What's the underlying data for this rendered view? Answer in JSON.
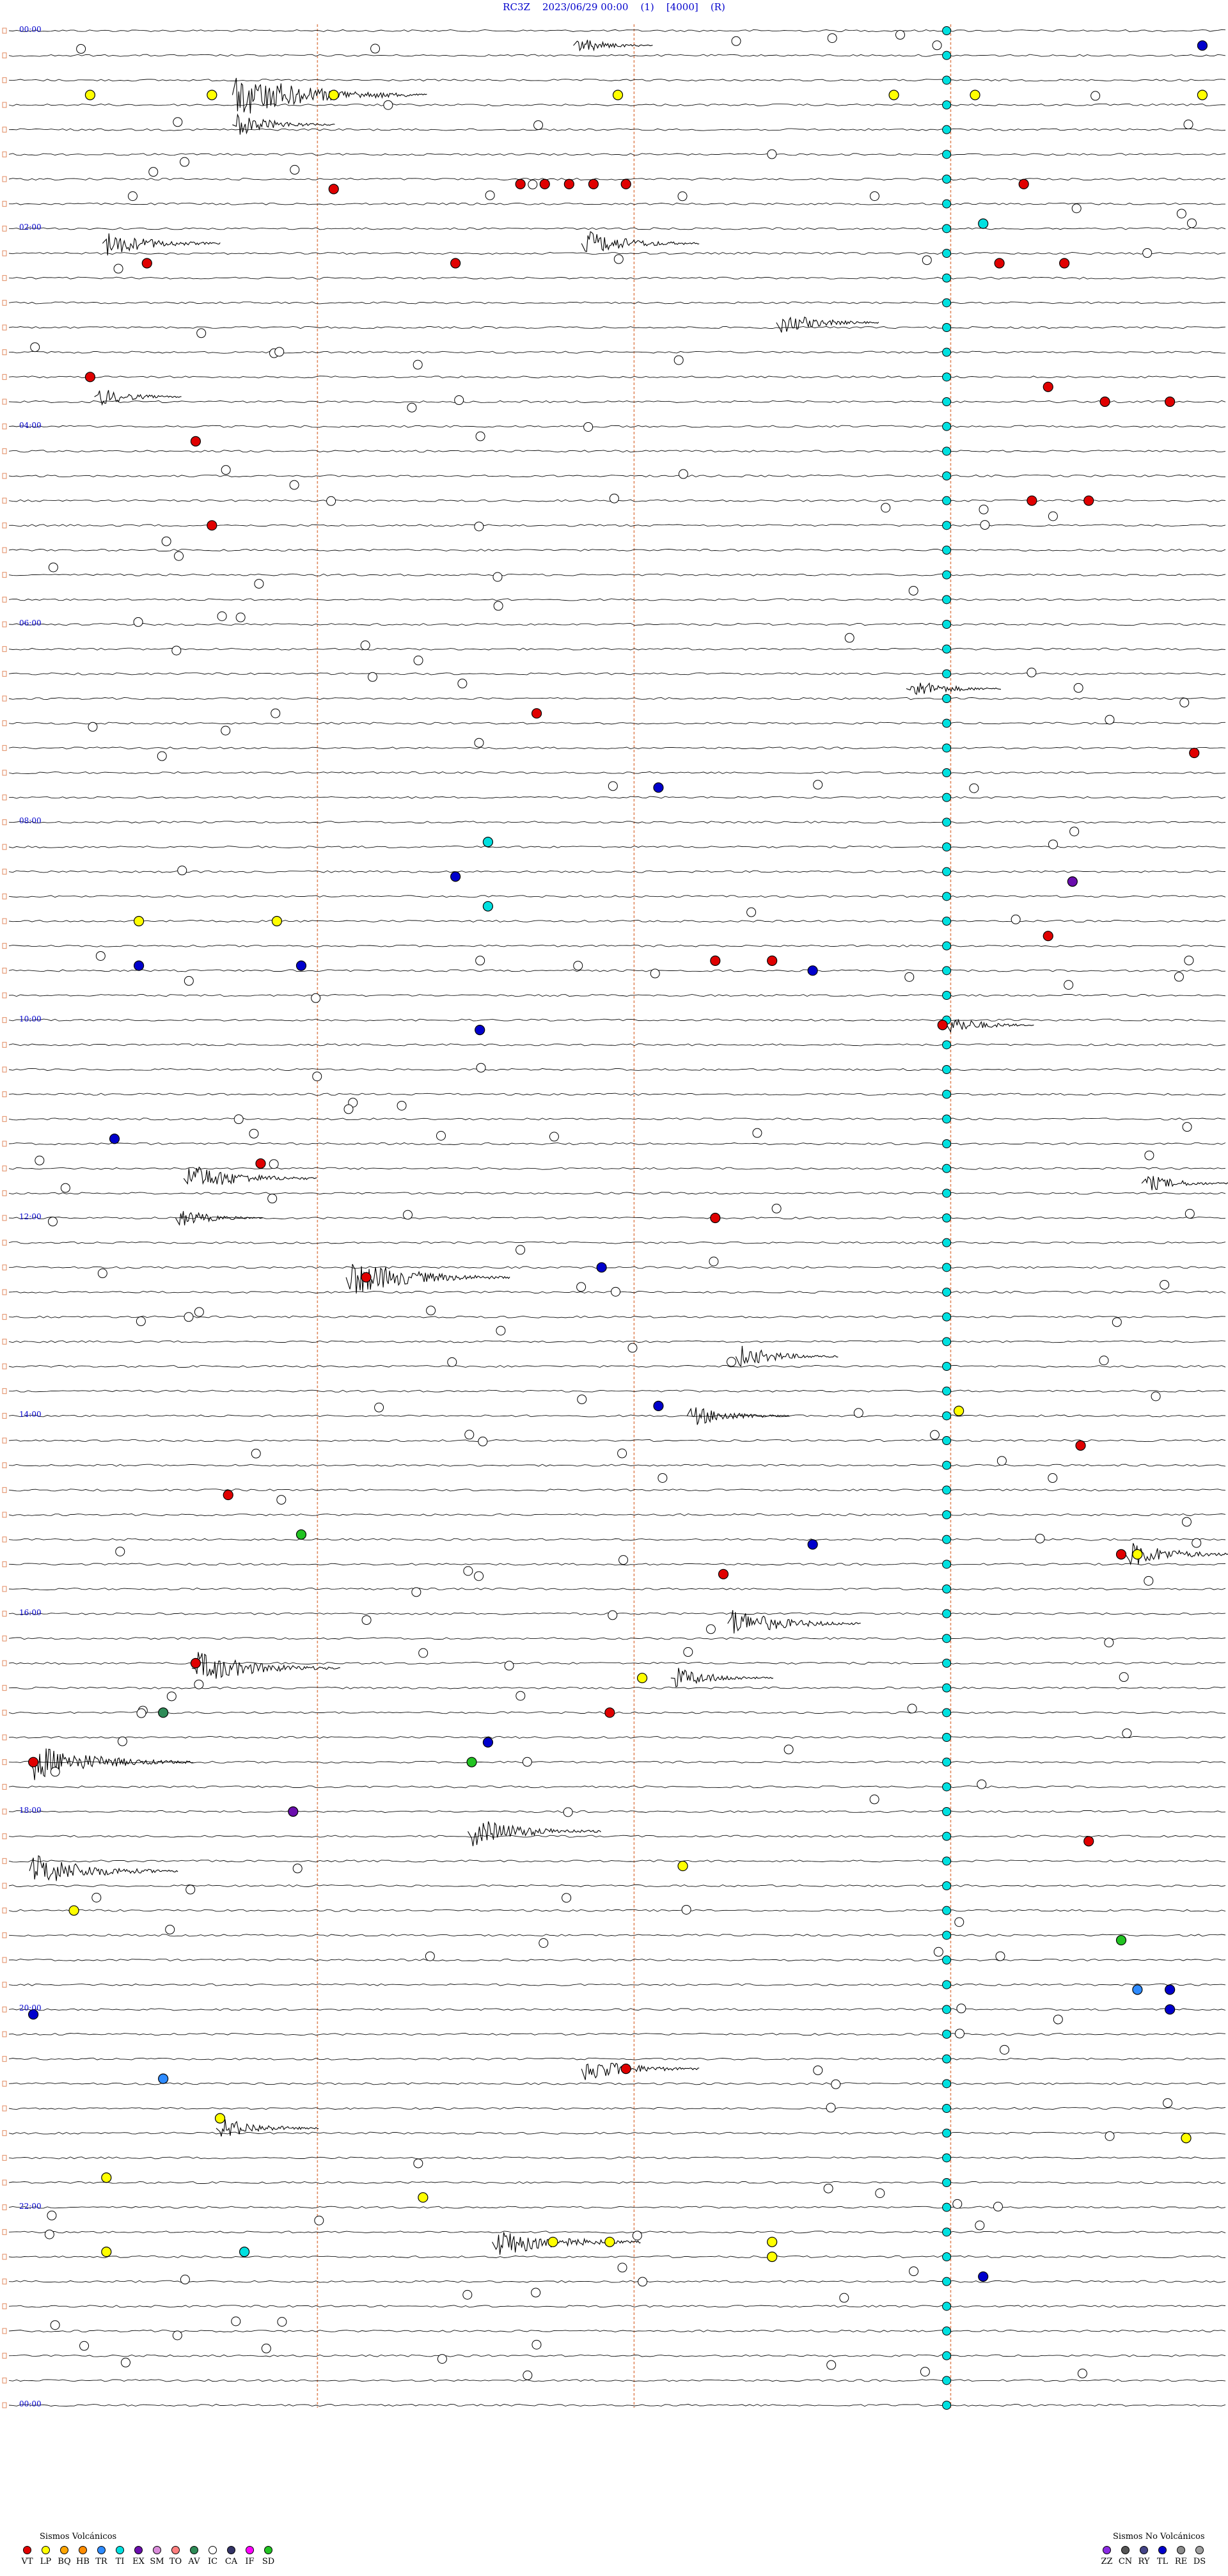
{
  "header": {
    "station": "RC3Z",
    "datetime": "2023/06/29 00:00",
    "p1": "(1)",
    "p2": "[4000]",
    "p3": "(R)"
  },
  "hour_labels": [
    "00:00",
    "02:00",
    "04:00",
    "06:00",
    "08:00",
    "10:00",
    "12:00",
    "14:00",
    "16:00",
    "18:00",
    "20:00",
    "22:00",
    "00:00"
  ],
  "legend": {
    "volcanic_title": "Sismos Volcánicos",
    "volcanic": [
      {
        "code": "VT",
        "color": "#e00000"
      },
      {
        "code": "LP",
        "color": "#ffff00"
      },
      {
        "code": "BQ",
        "color": "#ffa500"
      },
      {
        "code": "HB",
        "color": "#ff8c00"
      },
      {
        "code": "TR",
        "color": "#2e8bff"
      },
      {
        "code": "TI",
        "color": "#00e0e0"
      },
      {
        "code": "EX",
        "color": "#6a0dad"
      },
      {
        "code": "SM",
        "color": "#d98cd9"
      },
      {
        "code": "TO",
        "color": "#ff7f7f"
      },
      {
        "code": "AV",
        "color": "#2e8b57"
      },
      {
        "code": "IC",
        "color": "#ffffff"
      },
      {
        "code": "CA",
        "color": "#333366"
      },
      {
        "code": "IF",
        "color": "#ff00ff"
      },
      {
        "code": "SD",
        "color": "#22c322"
      }
    ],
    "nonvolcanic_title": "Sismos No Volcánicos",
    "nonvolcanic": [
      {
        "code": "ZZ",
        "color": "#8a2be2"
      },
      {
        "code": "CN",
        "color": "#555555"
      },
      {
        "code": "RY",
        "color": "#444488"
      },
      {
        "code": "TL",
        "color": "#0000cc"
      },
      {
        "code": "RE",
        "color": "#8b8b8b"
      },
      {
        "code": "DS",
        "color": "#a0a0a0"
      }
    ]
  },
  "chart_data": {
    "type": "helicorder",
    "title": "RC3Z    2023/06/29 00:00    (1)    [4000]    (R)",
    "traces_per_hour": 4,
    "x_minutes": [
      0,
      15
    ],
    "y_hours": [
      0,
      24
    ],
    "hour_labels": [
      "00:00",
      "02:00",
      "04:00",
      "06:00",
      "08:00",
      "10:00",
      "12:00",
      "14:00",
      "16:00",
      "18:00",
      "20:00",
      "22:00",
      "00:00"
    ],
    "events": [
      {
        "h": 0.15,
        "m": 14.7,
        "t": "TL"
      },
      {
        "h": 0.65,
        "m": 1.0,
        "t": "LP"
      },
      {
        "h": 0.65,
        "m": 2.5,
        "t": "LP"
      },
      {
        "h": 0.65,
        "m": 4.0,
        "t": "LP"
      },
      {
        "h": 0.65,
        "m": 7.5,
        "t": "LP"
      },
      {
        "h": 0.65,
        "m": 10.9,
        "t": "LP"
      },
      {
        "h": 0.65,
        "m": 11.9,
        "t": "LP"
      },
      {
        "h": 0.65,
        "m": 14.7,
        "t": "LP"
      },
      {
        "h": 1.55,
        "m": 6.3,
        "t": "VT"
      },
      {
        "h": 1.55,
        "m": 6.6,
        "t": "VT"
      },
      {
        "h": 1.55,
        "m": 6.9,
        "t": "VT"
      },
      {
        "h": 1.55,
        "m": 7.2,
        "t": "VT"
      },
      {
        "h": 1.55,
        "m": 7.6,
        "t": "VT"
      },
      {
        "h": 1.55,
        "m": 12.5,
        "t": "VT"
      },
      {
        "h": 1.6,
        "m": 4.0,
        "t": "VT"
      },
      {
        "h": 1.95,
        "m": 12.0,
        "t": "TI"
      },
      {
        "h": 2.35,
        "m": 1.7,
        "t": "VT"
      },
      {
        "h": 2.35,
        "m": 5.5,
        "t": "VT"
      },
      {
        "h": 2.35,
        "m": 12.2,
        "t": "VT"
      },
      {
        "h": 2.35,
        "m": 13.0,
        "t": "VT"
      },
      {
        "h": 3.5,
        "m": 1.0,
        "t": "VT"
      },
      {
        "h": 3.6,
        "m": 12.8,
        "t": "VT"
      },
      {
        "h": 3.75,
        "m": 13.5,
        "t": "VT"
      },
      {
        "h": 3.75,
        "m": 14.3,
        "t": "VT"
      },
      {
        "h": 4.15,
        "m": 2.3,
        "t": "VT"
      },
      {
        "h": 4.75,
        "m": 12.6,
        "t": "VT"
      },
      {
        "h": 4.75,
        "m": 13.3,
        "t": "VT"
      },
      {
        "h": 5.0,
        "m": 2.5,
        "t": "VT"
      },
      {
        "h": 6.9,
        "m": 6.5,
        "t": "VT"
      },
      {
        "h": 7.3,
        "m": 14.6,
        "t": "VT"
      },
      {
        "h": 7.65,
        "m": 8.0,
        "t": "TL"
      },
      {
        "h": 8.2,
        "m": 5.9,
        "t": "TI"
      },
      {
        "h": 8.55,
        "m": 5.5,
        "t": "TL"
      },
      {
        "h": 8.6,
        "m": 13.1,
        "t": "EX"
      },
      {
        "h": 8.85,
        "m": 5.9,
        "t": "TI"
      },
      {
        "h": 9.0,
        "m": 1.6,
        "t": "LP"
      },
      {
        "h": 9.0,
        "m": 3.3,
        "t": "LP"
      },
      {
        "h": 9.15,
        "m": 12.8,
        "t": "VT"
      },
      {
        "h": 9.4,
        "m": 8.7,
        "t": "VT"
      },
      {
        "h": 9.4,
        "m": 9.4,
        "t": "VT"
      },
      {
        "h": 9.45,
        "m": 1.6,
        "t": "TL"
      },
      {
        "h": 9.45,
        "m": 3.6,
        "t": "TL"
      },
      {
        "h": 9.5,
        "m": 9.9,
        "t": "TL"
      },
      {
        "h": 10.05,
        "m": 11.5,
        "t": "VT"
      },
      {
        "h": 10.1,
        "m": 5.8,
        "t": "TL"
      },
      {
        "h": 11.2,
        "m": 1.3,
        "t": "TL"
      },
      {
        "h": 11.45,
        "m": 3.1,
        "t": "VT"
      },
      {
        "h": 12.0,
        "m": 8.7,
        "t": "VT"
      },
      {
        "h": 12.5,
        "m": 7.3,
        "t": "TL"
      },
      {
        "h": 12.6,
        "m": 4.4,
        "t": "VT"
      },
      {
        "h": 13.9,
        "m": 8.0,
        "t": "TL"
      },
      {
        "h": 13.95,
        "m": 11.7,
        "t": "LP"
      },
      {
        "h": 14.3,
        "m": 13.2,
        "t": "VT"
      },
      {
        "h": 14.8,
        "m": 2.7,
        "t": "VT"
      },
      {
        "h": 15.2,
        "m": 3.6,
        "t": "SD"
      },
      {
        "h": 15.3,
        "m": 9.9,
        "t": "TL"
      },
      {
        "h": 15.4,
        "m": 13.7,
        "t": "VT"
      },
      {
        "h": 15.4,
        "m": 13.9,
        "t": "LP"
      },
      {
        "h": 15.6,
        "m": 8.8,
        "t": "VT"
      },
      {
        "h": 16.5,
        "m": 2.3,
        "t": "VT"
      },
      {
        "h": 16.65,
        "m": 7.8,
        "t": "LP"
      },
      {
        "h": 17.0,
        "m": 1.9,
        "t": "AV"
      },
      {
        "h": 17.0,
        "m": 7.4,
        "t": "VT"
      },
      {
        "h": 17.3,
        "m": 5.9,
        "t": "TL"
      },
      {
        "h": 17.5,
        "m": 0.3,
        "t": "VT"
      },
      {
        "h": 17.5,
        "m": 5.7,
        "t": "SD"
      },
      {
        "h": 18.0,
        "m": 3.5,
        "t": "EX"
      },
      {
        "h": 18.3,
        "m": 13.3,
        "t": "VT"
      },
      {
        "h": 18.55,
        "m": 8.3,
        "t": "LP"
      },
      {
        "h": 19.0,
        "m": 0.8,
        "t": "LP"
      },
      {
        "h": 19.3,
        "m": 13.7,
        "t": "SD"
      },
      {
        "h": 19.8,
        "m": 13.9,
        "t": "TR"
      },
      {
        "h": 19.8,
        "m": 14.3,
        "t": "TL"
      },
      {
        "h": 20.0,
        "m": 14.3,
        "t": "TL"
      },
      {
        "h": 20.05,
        "m": 0.3,
        "t": "TL"
      },
      {
        "h": 20.6,
        "m": 7.6,
        "t": "VT"
      },
      {
        "h": 20.7,
        "m": 1.9,
        "t": "TR"
      },
      {
        "h": 21.1,
        "m": 2.6,
        "t": "LP"
      },
      {
        "h": 21.3,
        "m": 14.5,
        "t": "LP"
      },
      {
        "h": 21.7,
        "m": 1.2,
        "t": "LP"
      },
      {
        "h": 21.9,
        "m": 5.1,
        "t": "LP"
      },
      {
        "h": 22.35,
        "m": 6.7,
        "t": "LP"
      },
      {
        "h": 22.35,
        "m": 7.4,
        "t": "LP"
      },
      {
        "h": 22.35,
        "m": 9.4,
        "t": "LP"
      },
      {
        "h": 22.45,
        "m": 1.2,
        "t": "LP"
      },
      {
        "h": 22.45,
        "m": 2.9,
        "t": "TI"
      },
      {
        "h": 22.5,
        "m": 9.4,
        "t": "LP"
      },
      {
        "h": 22.7,
        "m": 12.0,
        "t": "TL"
      }
    ],
    "bursts": [
      {
        "h": 0.65,
        "m": 2.8,
        "amp": 1.0
      },
      {
        "h": 0.95,
        "m": 2.8,
        "amp": 0.4
      },
      {
        "h": 0.15,
        "m": 7.0,
        "amp": 0.25
      },
      {
        "h": 2.15,
        "m": 1.2,
        "amp": 0.5
      },
      {
        "h": 2.15,
        "m": 7.1,
        "amp": 0.5
      },
      {
        "h": 2.95,
        "m": 9.5,
        "amp": 0.4
      },
      {
        "h": 3.7,
        "m": 1.1,
        "amp": 0.3
      },
      {
        "h": 6.65,
        "m": 11.1,
        "amp": 0.35
      },
      {
        "h": 10.05,
        "m": 11.6,
        "amp": 0.3
      },
      {
        "h": 11.6,
        "m": 2.2,
        "amp": 0.6
      },
      {
        "h": 11.65,
        "m": 14.0,
        "amp": 0.3
      },
      {
        "h": 12.0,
        "m": 2.1,
        "amp": 0.3
      },
      {
        "h": 12.6,
        "m": 4.2,
        "amp": 0.8
      },
      {
        "h": 13.4,
        "m": 9.0,
        "amp": 0.4
      },
      {
        "h": 14.0,
        "m": 8.4,
        "amp": 0.4
      },
      {
        "h": 15.4,
        "m": 13.8,
        "amp": 0.5
      },
      {
        "h": 16.1,
        "m": 8.9,
        "amp": 0.6
      },
      {
        "h": 16.55,
        "m": 2.3,
        "amp": 0.7
      },
      {
        "h": 16.65,
        "m": 8.2,
        "amp": 0.4
      },
      {
        "h": 17.5,
        "m": 0.3,
        "amp": 0.8
      },
      {
        "h": 18.2,
        "m": 5.7,
        "amp": 0.6
      },
      {
        "h": 18.6,
        "m": 0.3,
        "amp": 0.7
      },
      {
        "h": 20.6,
        "m": 7.1,
        "amp": 0.5
      },
      {
        "h": 21.2,
        "m": 2.6,
        "amp": 0.4
      },
      {
        "h": 22.35,
        "m": 6.0,
        "amp": 0.7
      }
    ]
  }
}
